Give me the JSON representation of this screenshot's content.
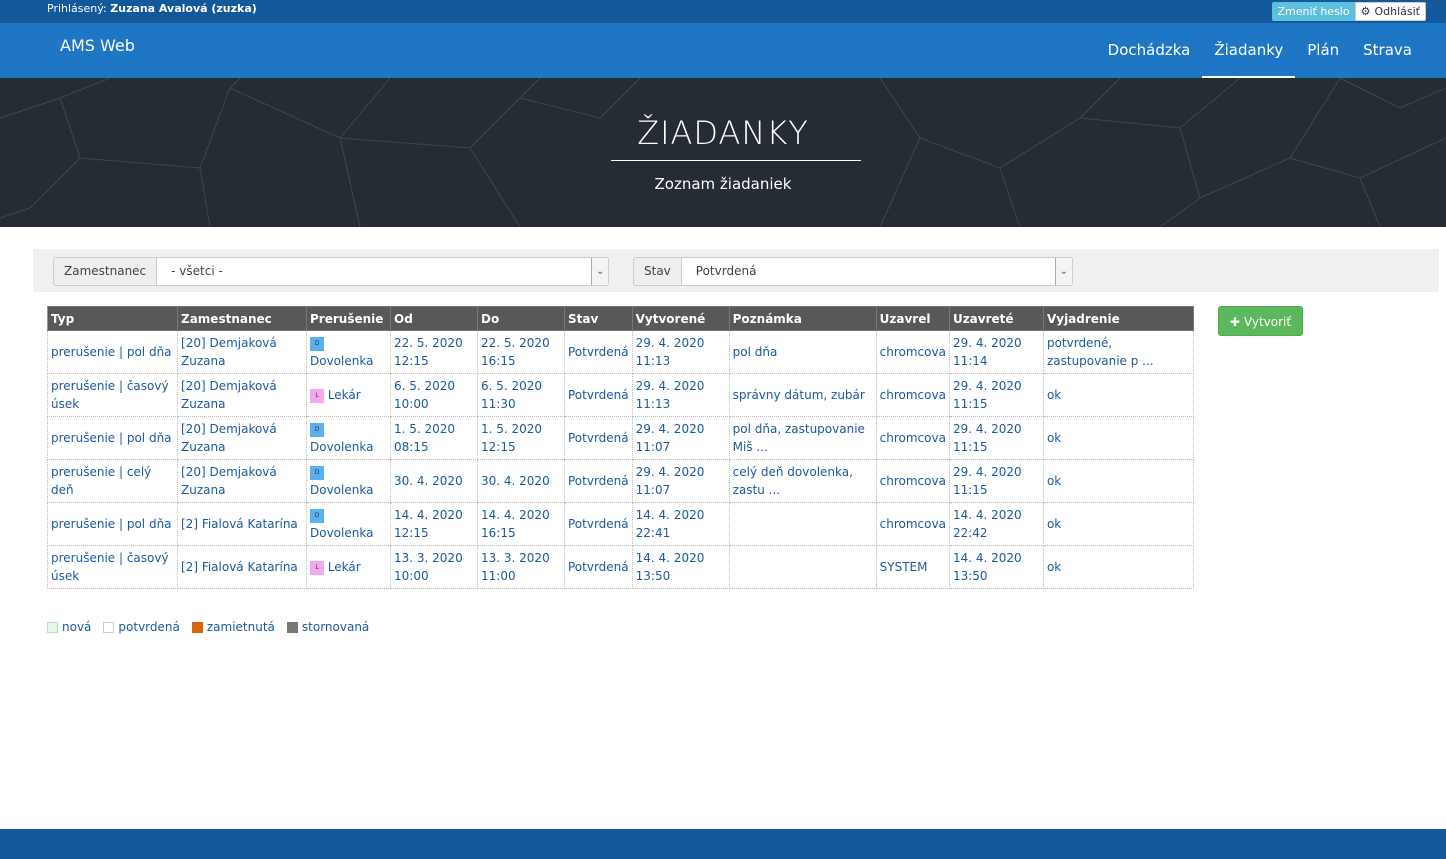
{
  "topbar": {
    "logged_label": "Prihlásený:",
    "logged_user": "Zuzana Avalová (zuzka)",
    "change_password": "Zmeniť heslo",
    "logout": "Odhlásiť"
  },
  "navbar": {
    "brand": "AMS Web",
    "items": [
      {
        "label": "Dochádzka",
        "active": false
      },
      {
        "label": "Žiadanky",
        "active": true
      },
      {
        "label": "Plán",
        "active": false
      },
      {
        "label": "Strava",
        "active": false
      }
    ]
  },
  "hero": {
    "title": "ŽIADANKY",
    "subtitle": "Zoznam žiadaniek"
  },
  "filters": {
    "employee_label": "Zamestnanec",
    "employee_value": "- všetci -",
    "state_label": "Stav",
    "state_value": "Potvrdená"
  },
  "table": {
    "headers": [
      "Typ",
      "Zamestnanec",
      "Prerušenie",
      "Od",
      "Do",
      "Stav",
      "Vytvorené",
      "Poznámka",
      "Uzavrel",
      "Uzavreté",
      "Vyjadrenie"
    ],
    "rows": [
      {
        "typ": "prerušenie | pol dňa",
        "zamestnanec": "[20] Demjaková Zuzana",
        "badge": "D",
        "prerusenie": "Dovolenka",
        "od": "22. 5. 2020 12:15",
        "do": "22. 5. 2020 16:15",
        "stav": "Potvrdená",
        "vytvorene": "29. 4. 2020 11:13",
        "poznamka": "pol dňa",
        "uzavrel": "chromcova",
        "uzavrete": "29. 4. 2020 11:14",
        "vyjadrenie": "potvrdené, zastupovanie p ..."
      },
      {
        "typ": "prerušenie | časový úsek",
        "zamestnanec": "[20] Demjaková Zuzana",
        "badge": "L",
        "prerusenie": "Lekár",
        "od": "6. 5. 2020 10:00",
        "do": "6. 5. 2020 11:30",
        "stav": "Potvrdená",
        "vytvorene": "29. 4. 2020 11:13",
        "poznamka": "správny dátum, zubár",
        "uzavrel": "chromcova",
        "uzavrete": "29. 4. 2020 11:15",
        "vyjadrenie": "ok"
      },
      {
        "typ": "prerušenie | pol dňa",
        "zamestnanec": "[20] Demjaková Zuzana",
        "badge": "D",
        "prerusenie": "Dovolenka",
        "od": "1. 5. 2020 08:15",
        "do": "1. 5. 2020 12:15",
        "stav": "Potvrdená",
        "vytvorene": "29. 4. 2020 11:07",
        "poznamka": "pol dňa, zastupovanie Miš ...",
        "uzavrel": "chromcova",
        "uzavrete": "29. 4. 2020 11:15",
        "vyjadrenie": "ok"
      },
      {
        "typ": "prerušenie | celý deň",
        "zamestnanec": "[20] Demjaková Zuzana",
        "badge": "D",
        "prerusenie": "Dovolenka",
        "od": "30. 4. 2020",
        "do": "30. 4. 2020",
        "stav": "Potvrdená",
        "vytvorene": "29. 4. 2020 11:07",
        "poznamka": "celý deň dovolenka, zastu ...",
        "uzavrel": "chromcova",
        "uzavrete": "29. 4. 2020 11:15",
        "vyjadrenie": "ok"
      },
      {
        "typ": "prerušenie | pol dňa",
        "zamestnanec": "[2] Fialová Katarína",
        "badge": "D",
        "prerusenie": "Dovolenka",
        "od": "14. 4. 2020 12:15",
        "do": "14. 4. 2020 16:15",
        "stav": "Potvrdená",
        "vytvorene": "14. 4. 2020 22:41",
        "poznamka": "",
        "uzavrel": "chromcova",
        "uzavrete": "14. 4. 2020 22:42",
        "vyjadrenie": "ok"
      },
      {
        "typ": "prerušenie | časový úsek",
        "zamestnanec": "[2] Fialová Katarína",
        "badge": "L",
        "prerusenie": "Lekár",
        "od": "13. 3. 2020 10:00",
        "do": "13. 3. 2020 11:00",
        "stav": "Potvrdená",
        "vytvorene": "14. 4. 2020 13:50",
        "poznamka": "",
        "uzavrel": "SYSTEM",
        "uzavrete": "14. 4. 2020 13:50",
        "vyjadrenie": "ok"
      }
    ]
  },
  "create_button": "Vytvoriť",
  "legend": [
    {
      "label": "nová",
      "color": "#e8f8e8"
    },
    {
      "label": "potvrdená",
      "color": "#ffffff"
    },
    {
      "label": "zamietnutá",
      "color": "#d9640c"
    },
    {
      "label": "stornovaná",
      "color": "#777777"
    }
  ],
  "colors": {
    "topbar": "#12589a",
    "navbar": "#1e76c4",
    "link": "#1c5aa0",
    "create": "#5cb85c"
  }
}
